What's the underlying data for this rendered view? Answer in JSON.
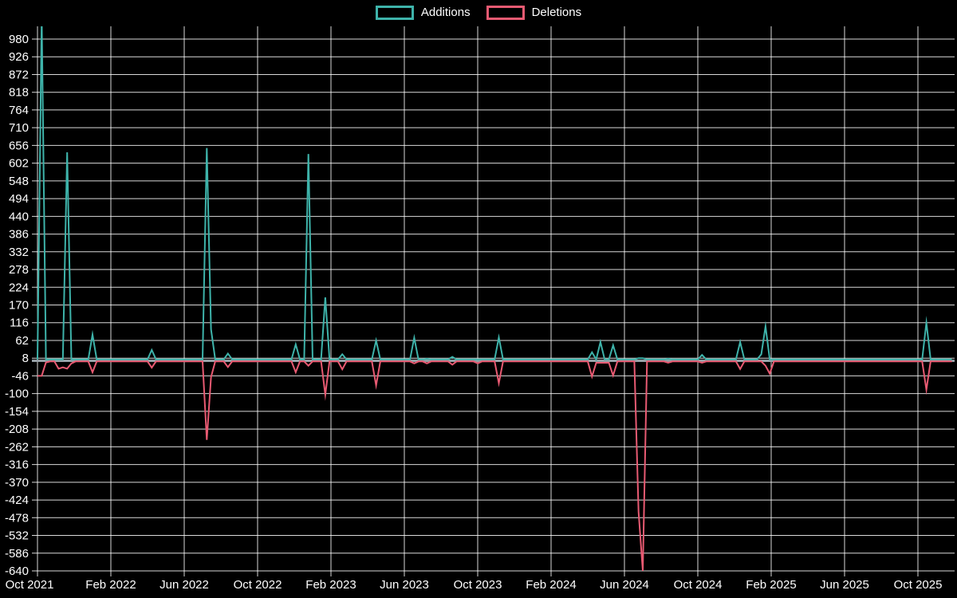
{
  "legend": [
    {
      "label": "Additions",
      "color": "#3eb3aa"
    },
    {
      "label": "Deletions",
      "color": "#e85a72"
    }
  ],
  "chart_data": {
    "type": "line",
    "title": "",
    "background": "#000000",
    "grid": true,
    "grid_color": "#ffffff",
    "zero_line_color": "#96a0a6",
    "text_color": "#ffffff",
    "legend_position": "top-center",
    "x_axis": {
      "tick_labels": [
        "Oct 2021",
        "Feb 2022",
        "Jun 2022",
        "Oct 2022",
        "Feb 2023",
        "Jun 2023",
        "Oct 2023",
        "Feb 2024",
        "Jun 2024",
        "Oct 2024",
        "Feb 2025",
        "Jun 2025",
        "Oct 2025"
      ],
      "unit": "weeks",
      "n_points": 217
    },
    "y_axis": {
      "tick_labels": [
        980,
        926,
        872,
        818,
        764,
        710,
        656,
        602,
        548,
        494,
        440,
        386,
        332,
        278,
        224,
        170,
        116,
        62,
        8,
        -46,
        -100,
        -154,
        -208,
        -262,
        -316,
        -370,
        -424,
        -478,
        -532,
        -586,
        -640
      ],
      "max": 980,
      "min": -640,
      "tick_step": 54
    },
    "series": [
      {
        "name": "Additions",
        "color": "#3eb3aa",
        "baseline": 4,
        "spikes": [
          [
            1,
            1050
          ],
          [
            7,
            635
          ],
          [
            13,
            80
          ],
          [
            27,
            33
          ],
          [
            40,
            648
          ],
          [
            41,
            96
          ],
          [
            45,
            22
          ],
          [
            61,
            50
          ],
          [
            64,
            630
          ],
          [
            68,
            193
          ],
          [
            72,
            20
          ],
          [
            80,
            62
          ],
          [
            89,
            70
          ],
          [
            92,
            6
          ],
          [
            98,
            12
          ],
          [
            109,
            71
          ],
          [
            131,
            26
          ],
          [
            133,
            57
          ],
          [
            136,
            47
          ],
          [
            142,
            8
          ],
          [
            143,
            8
          ],
          [
            149,
            6
          ],
          [
            157,
            18
          ],
          [
            166,
            57
          ],
          [
            171,
            20
          ],
          [
            172,
            105
          ],
          [
            210,
            116
          ]
        ]
      },
      {
        "name": "Deletions",
        "color": "#e85a72",
        "baseline": -2,
        "spikes": [
          [
            0,
            -46
          ],
          [
            1,
            -46
          ],
          [
            2,
            -5
          ],
          [
            5,
            -24
          ],
          [
            6,
            -20
          ],
          [
            7,
            -24
          ],
          [
            8,
            -8
          ],
          [
            13,
            -35
          ],
          [
            27,
            -21
          ],
          [
            40,
            -241
          ],
          [
            41,
            -50
          ],
          [
            45,
            -19
          ],
          [
            61,
            -35
          ],
          [
            64,
            -15
          ],
          [
            68,
            -103
          ],
          [
            72,
            -26
          ],
          [
            80,
            -75
          ],
          [
            89,
            -8
          ],
          [
            92,
            -8
          ],
          [
            98,
            -12
          ],
          [
            104,
            -8
          ],
          [
            109,
            -68
          ],
          [
            131,
            -48
          ],
          [
            132,
            -6
          ],
          [
            133,
            -6
          ],
          [
            134,
            -6
          ],
          [
            135,
            -6
          ],
          [
            136,
            -45
          ],
          [
            142,
            -460
          ],
          [
            143,
            -640
          ],
          [
            149,
            -6
          ],
          [
            157,
            -6
          ],
          [
            166,
            -25
          ],
          [
            172,
            -15
          ],
          [
            173,
            -39
          ],
          [
            210,
            -88
          ]
        ]
      }
    ]
  }
}
